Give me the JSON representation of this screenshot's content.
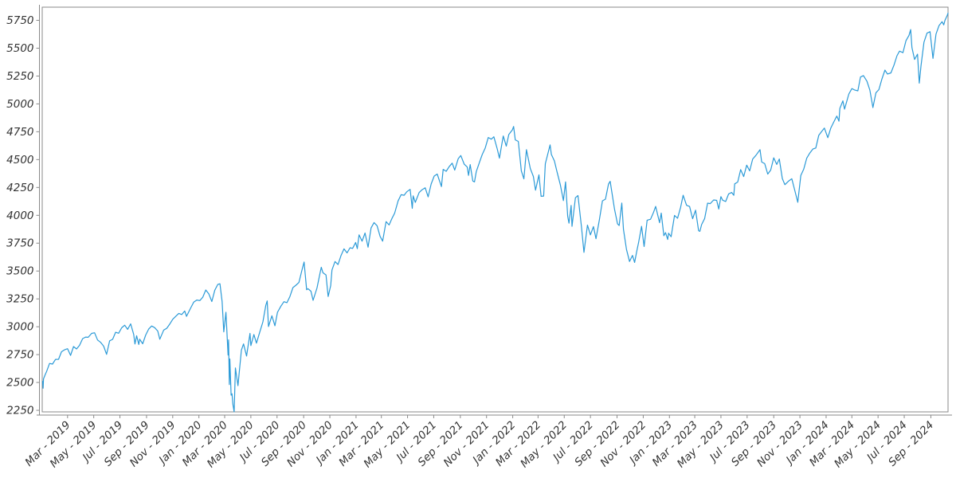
{
  "chart_data": {
    "type": "line",
    "title": "",
    "xlabel": "",
    "ylabel": "",
    "grid": false,
    "legend": "none",
    "background_color": "#ffffff",
    "frame_color": "#8a8a8a",
    "axis_line_color": "#8a8a8a",
    "tick_label_color": "#333333",
    "line_color": "#2b9ad7",
    "ylim": [
      2236,
      5868
    ],
    "x_domain": [
      "2019-01-01",
      "2024-10-11"
    ],
    "y_ticks": [
      2250,
      2500,
      2750,
      3000,
      3250,
      3500,
      3750,
      4000,
      4250,
      4500,
      4750,
      5000,
      5250,
      5500,
      5750
    ],
    "x_tick_labels": [
      "Mar - 2019",
      "May - 2019",
      "Jul - 2019",
      "Sep - 2019",
      "Nov - 2019",
      "Jan - 2020",
      "Mar - 2020",
      "May - 2020",
      "Jul - 2020",
      "Sep - 2020",
      "Nov - 2020",
      "Jan - 2021",
      "Mar - 2021",
      "May - 2021",
      "Jul - 2021",
      "Sep - 2021",
      "Nov - 2021",
      "Jan - 2022",
      "Mar - 2022",
      "May - 2022",
      "Jul - 2022",
      "Sep - 2022",
      "Nov - 2022",
      "Jan - 2023",
      "Mar - 2023",
      "May - 2023",
      "Jul - 2023",
      "Sep - 2023",
      "Nov - 2023",
      "Jan - 2024",
      "Mar - 2024",
      "May - 2024",
      "Jul - 2024",
      "Sep - 2024"
    ],
    "points": [
      [
        "2019-01-02",
        2510
      ],
      [
        "2019-01-03",
        2448
      ],
      [
        "2019-01-04",
        2532
      ],
      [
        "2019-01-09",
        2580
      ],
      [
        "2019-01-11",
        2596
      ],
      [
        "2019-01-18",
        2671
      ],
      [
        "2019-01-25",
        2665
      ],
      [
        "2019-02-01",
        2707
      ],
      [
        "2019-02-08",
        2708
      ],
      [
        "2019-02-15",
        2776
      ],
      [
        "2019-02-22",
        2793
      ],
      [
        "2019-03-01",
        2803
      ],
      [
        "2019-03-08",
        2743
      ],
      [
        "2019-03-15",
        2822
      ],
      [
        "2019-03-22",
        2801
      ],
      [
        "2019-03-29",
        2834
      ],
      [
        "2019-04-05",
        2893
      ],
      [
        "2019-04-12",
        2907
      ],
      [
        "2019-04-18",
        2905
      ],
      [
        "2019-04-26",
        2940
      ],
      [
        "2019-05-03",
        2946
      ],
      [
        "2019-05-10",
        2881
      ],
      [
        "2019-05-17",
        2860
      ],
      [
        "2019-05-24",
        2826
      ],
      [
        "2019-05-31",
        2752
      ],
      [
        "2019-06-07",
        2873
      ],
      [
        "2019-06-14",
        2887
      ],
      [
        "2019-06-21",
        2950
      ],
      [
        "2019-06-28",
        2942
      ],
      [
        "2019-07-05",
        2990
      ],
      [
        "2019-07-12",
        3014
      ],
      [
        "2019-07-19",
        2977
      ],
      [
        "2019-07-26",
        3026
      ],
      [
        "2019-08-02",
        2932
      ],
      [
        "2019-08-05",
        2845
      ],
      [
        "2019-08-09",
        2919
      ],
      [
        "2019-08-14",
        2841
      ],
      [
        "2019-08-16",
        2889
      ],
      [
        "2019-08-23",
        2847
      ],
      [
        "2019-08-30",
        2926
      ],
      [
        "2019-09-06",
        2979
      ],
      [
        "2019-09-13",
        3007
      ],
      [
        "2019-09-20",
        2992
      ],
      [
        "2019-09-27",
        2962
      ],
      [
        "2019-10-02",
        2888
      ],
      [
        "2019-10-11",
        2970
      ],
      [
        "2019-10-18",
        2986
      ],
      [
        "2019-10-25",
        3023
      ],
      [
        "2019-11-01",
        3067
      ],
      [
        "2019-11-08",
        3093
      ],
      [
        "2019-11-15",
        3120
      ],
      [
        "2019-11-22",
        3110
      ],
      [
        "2019-11-29",
        3141
      ],
      [
        "2019-12-03",
        3093
      ],
      [
        "2019-12-13",
        3169
      ],
      [
        "2019-12-20",
        3221
      ],
      [
        "2019-12-27",
        3240
      ],
      [
        "2020-01-03",
        3235
      ],
      [
        "2020-01-10",
        3265
      ],
      [
        "2020-01-17",
        3330
      ],
      [
        "2020-01-24",
        3295
      ],
      [
        "2020-01-31",
        3226
      ],
      [
        "2020-02-07",
        3328
      ],
      [
        "2020-02-14",
        3380
      ],
      [
        "2020-02-19",
        3386
      ],
      [
        "2020-02-24",
        3226
      ],
      [
        "2020-02-28",
        2954
      ],
      [
        "2020-03-04",
        3130
      ],
      [
        "2020-03-09",
        2746
      ],
      [
        "2020-03-10",
        2882
      ],
      [
        "2020-03-12",
        2481
      ],
      [
        "2020-03-13",
        2711
      ],
      [
        "2020-03-16",
        2386
      ],
      [
        "2020-03-18",
        2398
      ],
      [
        "2020-03-20",
        2305
      ],
      [
        "2020-03-23",
        2237
      ],
      [
        "2020-03-26",
        2630
      ],
      [
        "2020-04-01",
        2471
      ],
      [
        "2020-04-09",
        2790
      ],
      [
        "2020-04-14",
        2846
      ],
      [
        "2020-04-21",
        2737
      ],
      [
        "2020-04-29",
        2940
      ],
      [
        "2020-05-01",
        2831
      ],
      [
        "2020-05-08",
        2930
      ],
      [
        "2020-05-14",
        2853
      ],
      [
        "2020-05-22",
        2955
      ],
      [
        "2020-05-29",
        3044
      ],
      [
        "2020-06-05",
        3194
      ],
      [
        "2020-06-08",
        3232
      ],
      [
        "2020-06-11",
        3002
      ],
      [
        "2020-06-19",
        3098
      ],
      [
        "2020-06-26",
        3009
      ],
      [
        "2020-07-02",
        3130
      ],
      [
        "2020-07-10",
        3185
      ],
      [
        "2020-07-17",
        3225
      ],
      [
        "2020-07-24",
        3216
      ],
      [
        "2020-07-31",
        3271
      ],
      [
        "2020-08-07",
        3351
      ],
      [
        "2020-08-14",
        3373
      ],
      [
        "2020-08-21",
        3397
      ],
      [
        "2020-08-28",
        3508
      ],
      [
        "2020-09-02",
        3581
      ],
      [
        "2020-09-08",
        3332
      ],
      [
        "2020-09-11",
        3341
      ],
      [
        "2020-09-18",
        3319
      ],
      [
        "2020-09-23",
        3237
      ],
      [
        "2020-10-02",
        3348
      ],
      [
        "2020-10-09",
        3477
      ],
      [
        "2020-10-12",
        3534
      ],
      [
        "2020-10-16",
        3484
      ],
      [
        "2020-10-23",
        3465
      ],
      [
        "2020-10-28",
        3271
      ],
      [
        "2020-11-03",
        3369
      ],
      [
        "2020-11-06",
        3509
      ],
      [
        "2020-11-13",
        3585
      ],
      [
        "2020-11-20",
        3558
      ],
      [
        "2020-11-27",
        3638
      ],
      [
        "2020-12-04",
        3699
      ],
      [
        "2020-12-11",
        3663
      ],
      [
        "2020-12-18",
        3709
      ],
      [
        "2020-12-24",
        3703
      ],
      [
        "2020-12-31",
        3756
      ],
      [
        "2021-01-04",
        3701
      ],
      [
        "2021-01-08",
        3825
      ],
      [
        "2021-01-15",
        3768
      ],
      [
        "2021-01-22",
        3841
      ],
      [
        "2021-01-29",
        3714
      ],
      [
        "2021-02-05",
        3887
      ],
      [
        "2021-02-12",
        3935
      ],
      [
        "2021-02-19",
        3907
      ],
      [
        "2021-02-26",
        3811
      ],
      [
        "2021-03-04",
        3768
      ],
      [
        "2021-03-12",
        3943
      ],
      [
        "2021-03-19",
        3913
      ],
      [
        "2021-03-26",
        3975
      ],
      [
        "2021-04-01",
        4020
      ],
      [
        "2021-04-09",
        4129
      ],
      [
        "2021-04-16",
        4185
      ],
      [
        "2021-04-23",
        4180
      ],
      [
        "2021-04-29",
        4211
      ],
      [
        "2021-05-07",
        4233
      ],
      [
        "2021-05-12",
        4063
      ],
      [
        "2021-05-14",
        4174
      ],
      [
        "2021-05-19",
        4116
      ],
      [
        "2021-05-28",
        4204
      ],
      [
        "2021-06-04",
        4230
      ],
      [
        "2021-06-11",
        4247
      ],
      [
        "2021-06-18",
        4166
      ],
      [
        "2021-06-25",
        4281
      ],
      [
        "2021-07-02",
        4352
      ],
      [
        "2021-07-09",
        4370
      ],
      [
        "2021-07-19",
        4258
      ],
      [
        "2021-07-23",
        4412
      ],
      [
        "2021-07-30",
        4395
      ],
      [
        "2021-08-06",
        4437
      ],
      [
        "2021-08-13",
        4468
      ],
      [
        "2021-08-19",
        4406
      ],
      [
        "2021-08-27",
        4509
      ],
      [
        "2021-09-02",
        4537
      ],
      [
        "2021-09-10",
        4459
      ],
      [
        "2021-09-17",
        4433
      ],
      [
        "2021-09-20",
        4358
      ],
      [
        "2021-09-24",
        4455
      ],
      [
        "2021-09-30",
        4308
      ],
      [
        "2021-10-04",
        4300
      ],
      [
        "2021-10-08",
        4391
      ],
      [
        "2021-10-15",
        4471
      ],
      [
        "2021-10-22",
        4545
      ],
      [
        "2021-10-29",
        4605
      ],
      [
        "2021-11-05",
        4698
      ],
      [
        "2021-11-12",
        4683
      ],
      [
        "2021-11-18",
        4705
      ],
      [
        "2021-11-26",
        4595
      ],
      [
        "2021-12-01",
        4513
      ],
      [
        "2021-12-10",
        4712
      ],
      [
        "2021-12-17",
        4621
      ],
      [
        "2021-12-23",
        4726
      ],
      [
        "2021-12-31",
        4766
      ],
      [
        "2022-01-03",
        4797
      ],
      [
        "2022-01-07",
        4677
      ],
      [
        "2022-01-14",
        4663
      ],
      [
        "2022-01-21",
        4398
      ],
      [
        "2022-01-27",
        4327
      ],
      [
        "2022-02-02",
        4589
      ],
      [
        "2022-02-11",
        4419
      ],
      [
        "2022-02-18",
        4349
      ],
      [
        "2022-02-23",
        4226
      ],
      [
        "2022-03-03",
        4363
      ],
      [
        "2022-03-08",
        4171
      ],
      [
        "2022-03-14",
        4173
      ],
      [
        "2022-03-18",
        4463
      ],
      [
        "2022-03-29",
        4632
      ],
      [
        "2022-04-01",
        4546
      ],
      [
        "2022-04-08",
        4488
      ],
      [
        "2022-04-14",
        4393
      ],
      [
        "2022-04-22",
        4272
      ],
      [
        "2022-04-29",
        4132
      ],
      [
        "2022-05-04",
        4300
      ],
      [
        "2022-05-09",
        3991
      ],
      [
        "2022-05-12",
        3930
      ],
      [
        "2022-05-17",
        4089
      ],
      [
        "2022-05-19",
        3901
      ],
      [
        "2022-05-27",
        4158
      ],
      [
        "2022-06-02",
        4177
      ],
      [
        "2022-06-10",
        3901
      ],
      [
        "2022-06-16",
        3667
      ],
      [
        "2022-06-24",
        3912
      ],
      [
        "2022-07-01",
        3825
      ],
      [
        "2022-07-08",
        3899
      ],
      [
        "2022-07-14",
        3790
      ],
      [
        "2022-07-22",
        3962
      ],
      [
        "2022-07-29",
        4130
      ],
      [
        "2022-08-05",
        4145
      ],
      [
        "2022-08-12",
        4280
      ],
      [
        "2022-08-16",
        4305
      ],
      [
        "2022-08-26",
        4058
      ],
      [
        "2022-09-02",
        3924
      ],
      [
        "2022-09-06",
        3908
      ],
      [
        "2022-09-12",
        4110
      ],
      [
        "2022-09-16",
        3873
      ],
      [
        "2022-09-23",
        3693
      ],
      [
        "2022-09-30",
        3586
      ],
      [
        "2022-10-07",
        3640
      ],
      [
        "2022-10-12",
        3577
      ],
      [
        "2022-10-17",
        3678
      ],
      [
        "2022-10-21",
        3753
      ],
      [
        "2022-10-28",
        3901
      ],
      [
        "2022-11-03",
        3720
      ],
      [
        "2022-11-10",
        3956
      ],
      [
        "2022-11-18",
        3965
      ],
      [
        "2022-11-25",
        4026
      ],
      [
        "2022-11-30",
        4080
      ],
      [
        "2022-12-09",
        3934
      ],
      [
        "2022-12-13",
        4020
      ],
      [
        "2022-12-19",
        3817
      ],
      [
        "2022-12-23",
        3845
      ],
      [
        "2022-12-28",
        3783
      ],
      [
        "2022-12-30",
        3840
      ],
      [
        "2023-01-05",
        3808
      ],
      [
        "2023-01-13",
        3999
      ],
      [
        "2023-01-20",
        3973
      ],
      [
        "2023-01-27",
        4071
      ],
      [
        "2023-02-02",
        4180
      ],
      [
        "2023-02-10",
        4090
      ],
      [
        "2023-02-17",
        4079
      ],
      [
        "2023-02-24",
        3970
      ],
      [
        "2023-03-03",
        4046
      ],
      [
        "2023-03-10",
        3862
      ],
      [
        "2023-03-13",
        3856
      ],
      [
        "2023-03-17",
        3917
      ],
      [
        "2023-03-24",
        3971
      ],
      [
        "2023-03-31",
        4109
      ],
      [
        "2023-04-06",
        4105
      ],
      [
        "2023-04-14",
        4138
      ],
      [
        "2023-04-21",
        4134
      ],
      [
        "2023-04-26",
        4056
      ],
      [
        "2023-05-01",
        4168
      ],
      [
        "2023-05-05",
        4136
      ],
      [
        "2023-05-12",
        4124
      ],
      [
        "2023-05-19",
        4192
      ],
      [
        "2023-05-26",
        4205
      ],
      [
        "2023-05-31",
        4180
      ],
      [
        "2023-06-02",
        4282
      ],
      [
        "2023-06-09",
        4299
      ],
      [
        "2023-06-16",
        4410
      ],
      [
        "2023-06-23",
        4348
      ],
      [
        "2023-06-30",
        4450
      ],
      [
        "2023-07-07",
        4399
      ],
      [
        "2023-07-14",
        4505
      ],
      [
        "2023-07-21",
        4536
      ],
      [
        "2023-07-31",
        4589
      ],
      [
        "2023-08-04",
        4478
      ],
      [
        "2023-08-11",
        4464
      ],
      [
        "2023-08-18",
        4370
      ],
      [
        "2023-08-25",
        4406
      ],
      [
        "2023-09-01",
        4516
      ],
      [
        "2023-09-08",
        4457
      ],
      [
        "2023-09-14",
        4505
      ],
      [
        "2023-09-21",
        4330
      ],
      [
        "2023-09-27",
        4275
      ],
      [
        "2023-10-06",
        4309
      ],
      [
        "2023-10-13",
        4328
      ],
      [
        "2023-10-20",
        4224
      ],
      [
        "2023-10-27",
        4117
      ],
      [
        "2023-11-03",
        4358
      ],
      [
        "2023-11-10",
        4415
      ],
      [
        "2023-11-17",
        4514
      ],
      [
        "2023-11-24",
        4559
      ],
      [
        "2023-12-01",
        4595
      ],
      [
        "2023-12-08",
        4604
      ],
      [
        "2023-12-15",
        4719
      ],
      [
        "2023-12-22",
        4755
      ],
      [
        "2023-12-28",
        4783
      ],
      [
        "2024-01-05",
        4697
      ],
      [
        "2024-01-12",
        4784
      ],
      [
        "2024-01-19",
        4839
      ],
      [
        "2024-01-26",
        4891
      ],
      [
        "2024-01-31",
        4845
      ],
      [
        "2024-02-02",
        4959
      ],
      [
        "2024-02-09",
        5027
      ],
      [
        "2024-02-13",
        4953
      ],
      [
        "2024-02-23",
        5089
      ],
      [
        "2024-03-01",
        5137
      ],
      [
        "2024-03-08",
        5124
      ],
      [
        "2024-03-15",
        5117
      ],
      [
        "2024-03-21",
        5241
      ],
      [
        "2024-03-28",
        5254
      ],
      [
        "2024-04-05",
        5204
      ],
      [
        "2024-04-12",
        5123
      ],
      [
        "2024-04-19",
        4967
      ],
      [
        "2024-04-26",
        5100
      ],
      [
        "2024-05-03",
        5128
      ],
      [
        "2024-05-10",
        5223
      ],
      [
        "2024-05-17",
        5303
      ],
      [
        "2024-05-23",
        5268
      ],
      [
        "2024-05-31",
        5278
      ],
      [
        "2024-06-07",
        5347
      ],
      [
        "2024-06-14",
        5432
      ],
      [
        "2024-06-20",
        5473
      ],
      [
        "2024-06-28",
        5460
      ],
      [
        "2024-07-05",
        5567
      ],
      [
        "2024-07-12",
        5615
      ],
      [
        "2024-07-16",
        5667
      ],
      [
        "2024-07-19",
        5505
      ],
      [
        "2024-07-25",
        5399
      ],
      [
        "2024-08-01",
        5446
      ],
      [
        "2024-08-05",
        5186
      ],
      [
        "2024-08-09",
        5344
      ],
      [
        "2024-08-16",
        5554
      ],
      [
        "2024-08-23",
        5635
      ],
      [
        "2024-08-30",
        5648
      ],
      [
        "2024-09-06",
        5408
      ],
      [
        "2024-09-13",
        5626
      ],
      [
        "2024-09-20",
        5703
      ],
      [
        "2024-09-27",
        5738
      ],
      [
        "2024-10-01",
        5709
      ],
      [
        "2024-10-04",
        5751
      ],
      [
        "2024-10-09",
        5792
      ],
      [
        "2024-10-11",
        5815
      ]
    ]
  }
}
